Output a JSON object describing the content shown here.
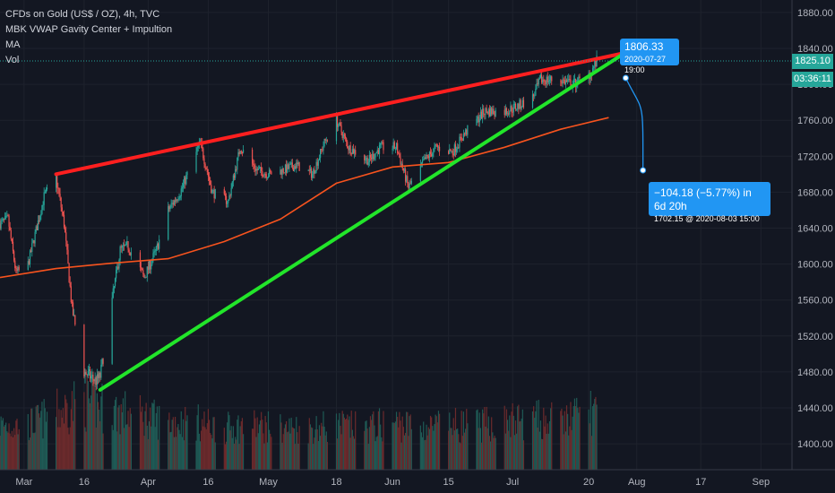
{
  "legend": {
    "symbol": "CFDs on Gold (US$ / OZ), 4h, TVC",
    "indicator1": "MBK VWAP Gavity Center + Impultion",
    "indicator2": "MA",
    "indicator3": "Vol"
  },
  "badges": {
    "last_price": "1825.10",
    "countdown": "03:36:11"
  },
  "annotations": {
    "start_price": "1806.33",
    "start_time": "2020-07-27 19:00",
    "target_change": "−104.18 (−5.77%) in 6d 20h",
    "target_detail": "1702.15 @ 2020-08-03  15:00"
  },
  "colors": {
    "background": "#131722",
    "up": "#26a69a",
    "down": "#ef5350",
    "resistance": "#ff1f1f",
    "support": "#22e52a",
    "vwap": "#f7531e",
    "tooltip": "#2196f3"
  },
  "chart_data": {
    "type": "line",
    "title": "CFDs on Gold (US$ / OZ), 4h, TVC",
    "ylim": [
      1380,
      1890
    ],
    "y_ticks": [
      "1400.00",
      "1440.00",
      "1480.00",
      "1520.00",
      "1560.00",
      "1600.00",
      "1640.00",
      "1680.00",
      "1720.00",
      "1760.00",
      "1800.00",
      "1840.00",
      "1880.00"
    ],
    "x_ticks": [
      "Mar",
      "16",
      "Apr",
      "16",
      "May",
      "18",
      "Jun",
      "15",
      "Jul",
      "20",
      "Aug",
      "17",
      "Sep"
    ],
    "price_series": {
      "name": "CFDs on Gold (US$ / OZ), 4h, TVC",
      "points": [
        [
          "2020-02-24",
          1645
        ],
        [
          "2020-02-26",
          1650
        ],
        [
          "2020-02-28",
          1590
        ],
        [
          "2020-03-02",
          1600
        ],
        [
          "2020-03-06",
          1675
        ],
        [
          "2020-03-09",
          1695
        ],
        [
          "2020-03-11",
          1645
        ],
        [
          "2020-03-13",
          1550
        ],
        [
          "2020-03-16",
          1480
        ],
        [
          "2020-03-19",
          1470
        ],
        [
          "2020-03-20",
          1475
        ],
        [
          "2020-03-23",
          1560
        ],
        [
          "2020-03-25",
          1615
        ],
        [
          "2020-03-27",
          1620
        ],
        [
          "2020-03-31",
          1585
        ],
        [
          "2020-04-03",
          1615
        ],
        [
          "2020-04-06",
          1660
        ],
        [
          "2020-04-09",
          1680
        ],
        [
          "2020-04-14",
          1735
        ],
        [
          "2020-04-17",
          1680
        ],
        [
          "2020-04-21",
          1670
        ],
        [
          "2020-04-24",
          1730
        ],
        [
          "2020-04-28",
          1705
        ],
        [
          "2020-05-01",
          1700
        ],
        [
          "2020-05-05",
          1705
        ],
        [
          "2020-05-08",
          1710
        ],
        [
          "2020-05-12",
          1700
        ],
        [
          "2020-05-15",
          1735
        ],
        [
          "2020-05-18",
          1760
        ],
        [
          "2020-05-21",
          1730
        ],
        [
          "2020-05-26",
          1715
        ],
        [
          "2020-05-29",
          1730
        ],
        [
          "2020-06-02",
          1730
        ],
        [
          "2020-06-05",
          1685
        ],
        [
          "2020-06-09",
          1715
        ],
        [
          "2020-06-12",
          1730
        ],
        [
          "2020-06-16",
          1725
        ],
        [
          "2020-06-19",
          1745
        ],
        [
          "2020-06-24",
          1770
        ],
        [
          "2020-06-29",
          1770
        ],
        [
          "2020-07-02",
          1775
        ],
        [
          "2020-07-06",
          1785
        ],
        [
          "2020-07-08",
          1805
        ],
        [
          "2020-07-13",
          1805
        ],
        [
          "2020-07-16",
          1800
        ],
        [
          "2020-07-20",
          1810
        ],
        [
          "2020-07-22",
          1825
        ]
      ]
    },
    "series": [
      {
        "name": "MBK VWAP Gavity Center + Impultion",
        "points": [
          [
            "2020-02-24",
            1585
          ],
          [
            "2020-03-09",
            1595
          ],
          [
            "2020-03-23",
            1601
          ],
          [
            "2020-04-06",
            1606
          ],
          [
            "2020-04-20",
            1625
          ],
          [
            "2020-05-04",
            1650
          ],
          [
            "2020-05-18",
            1690
          ],
          [
            "2020-06-01",
            1708
          ],
          [
            "2020-06-15",
            1713
          ],
          [
            "2020-06-29",
            1730
          ],
          [
            "2020-07-13",
            1750
          ],
          [
            "2020-07-25",
            1763
          ]
        ]
      },
      {
        "name": "Vol",
        "points": [
          [
            "2020-03-02",
            0.55
          ],
          [
            "2020-03-09",
            0.75
          ],
          [
            "2020-03-16",
            0.95
          ],
          [
            "2020-03-23",
            0.8
          ],
          [
            "2020-03-30",
            0.7
          ],
          [
            "2020-04-06",
            0.6
          ],
          [
            "2020-04-13",
            0.6
          ],
          [
            "2020-04-20",
            0.5
          ],
          [
            "2020-04-27",
            0.55
          ],
          [
            "2020-05-04",
            0.5
          ],
          [
            "2020-05-11",
            0.5
          ],
          [
            "2020-05-18",
            0.55
          ],
          [
            "2020-05-25",
            0.5
          ],
          [
            "2020-06-01",
            0.6
          ],
          [
            "2020-06-08",
            0.5
          ],
          [
            "2020-06-15",
            0.55
          ],
          [
            "2020-06-22",
            0.55
          ],
          [
            "2020-06-29",
            0.6
          ],
          [
            "2020-07-06",
            0.65
          ],
          [
            "2020-07-13",
            0.6
          ],
          [
            "2020-07-20",
            0.8
          ]
        ]
      }
    ],
    "trendlines": [
      {
        "role": "resistance",
        "from": [
          "2020-03-09",
          1700
        ],
        "to": [
          "2020-07-28",
          1834
        ]
      },
      {
        "role": "support",
        "from": [
          "2020-03-20",
          1460
        ],
        "to": [
          "2020-07-28",
          1832
        ]
      }
    ],
    "projection": {
      "from": [
        "2020-07-27",
        1806.33
      ],
      "to": [
        "2020-08-03",
        1702.15
      ]
    }
  }
}
